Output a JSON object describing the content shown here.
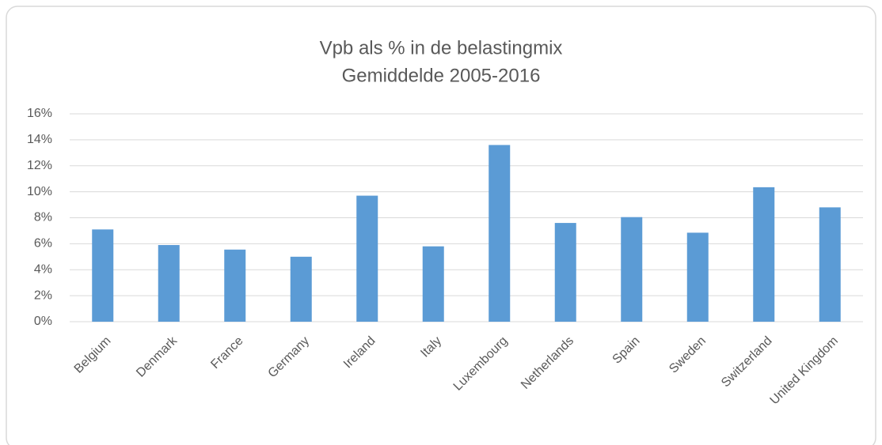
{
  "chart_data": {
    "type": "bar",
    "title": "Vpb als % in de belastingmix",
    "subtitle": "Gemiddelde 2005-2016",
    "categories": [
      "Belgium",
      "Denmark",
      "France",
      "Germany",
      "Ireland",
      "Italy",
      "Luxembourg",
      "Netherlands",
      "Spain",
      "Sweden",
      "Switzerland",
      "United Kingdom"
    ],
    "values": [
      7.1,
      5.9,
      5.55,
      5.0,
      9.7,
      5.8,
      13.6,
      7.6,
      8.05,
      6.85,
      10.35,
      8.8
    ],
    "color": "#5b9bd5",
    "ylim": [
      0,
      16
    ],
    "yticks": [
      {
        "value": 0,
        "label": "0%"
      },
      {
        "value": 2,
        "label": "2%"
      },
      {
        "value": 4,
        "label": "4%"
      },
      {
        "value": 6,
        "label": "6%"
      },
      {
        "value": 8,
        "label": "8%"
      },
      {
        "value": 10,
        "label": "10%"
      },
      {
        "value": 12,
        "label": "12%"
      },
      {
        "value": 14,
        "label": "14%"
      },
      {
        "value": 16,
        "label": "16%"
      }
    ],
    "grid": true
  }
}
